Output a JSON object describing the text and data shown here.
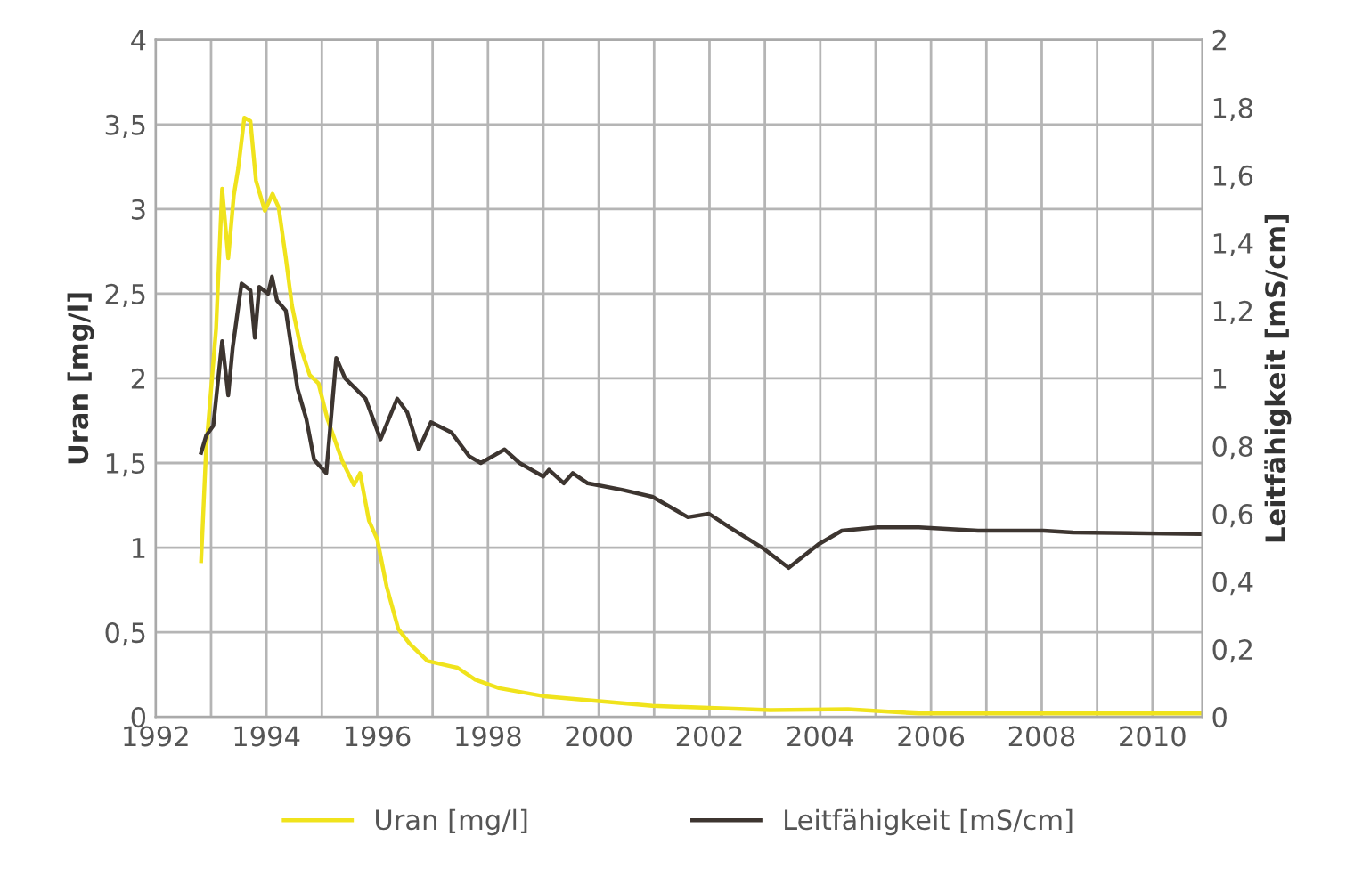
{
  "chart_data": {
    "type": "line",
    "ylabel": "Uran [mg/l]",
    "y2label": "Leitfähigkeit [mS/cm]",
    "xlim": [
      1992,
      2010.9
    ],
    "xticks": [
      1992,
      {
        "value": 1993,
        "label": null
      },
      1994,
      {
        "value": 1995,
        "label": null
      },
      1996,
      {
        "value": 1997,
        "label": null
      },
      1998,
      {
        "value": 1999,
        "label": null
      },
      2000,
      {
        "value": 2001,
        "label": null
      },
      2002,
      {
        "value": 2003,
        "label": null
      },
      2004,
      {
        "value": 2005,
        "label": null
      },
      2006,
      {
        "value": 2007,
        "label": null
      },
      2008,
      {
        "value": 2009,
        "label": null
      },
      2010
    ],
    "ylim": [
      0,
      4
    ],
    "yticks": [
      0,
      {
        "value": 0.5,
        "label": "0,5"
      },
      1,
      {
        "value": 1.5,
        "label": "1,5"
      },
      2,
      {
        "value": 2.5,
        "label": "2,5"
      },
      3,
      {
        "value": 3.5,
        "label": "3,5"
      },
      4
    ],
    "y2lim": [
      0,
      2
    ],
    "y2ticks": [
      0,
      {
        "value": 0.2,
        "label": "0,2"
      },
      {
        "value": 0.4,
        "label": "0,4"
      },
      {
        "value": 0.6,
        "label": "0,6"
      },
      {
        "value": 0.8,
        "label": "0,8"
      },
      1,
      {
        "value": 1.2,
        "label": "1,2"
      },
      {
        "value": 1.4,
        "label": "1,4"
      },
      {
        "value": 1.6,
        "label": "1,6"
      },
      {
        "value": 1.8,
        "label": "1,8"
      },
      2
    ],
    "grid": true,
    "legend": "bottom",
    "series": [
      {
        "name": "Uran [mg/l]",
        "color": "#f0e31c",
        "x": [
          1992.82,
          1992.91,
          1993.09,
          1993.2,
          1993.31,
          1993.41,
          1993.49,
          1993.6,
          1993.71,
          1993.81,
          1993.97,
          1994.11,
          1994.22,
          1994.35,
          1994.46,
          1994.62,
          1994.78,
          1994.94,
          1995.1,
          1995.37,
          1995.58,
          1995.69,
          1995.85,
          1996.0,
          1996.17,
          1996.38,
          1996.59,
          1996.91,
          1997.45,
          1997.77,
          1998.2,
          1999.05,
          2000.97,
          2003.1,
          2004.5,
          2005.78,
          2010.86
        ],
        "values": [
          0.92,
          1.58,
          2.29,
          3.12,
          2.71,
          3.08,
          3.24,
          3.54,
          3.52,
          3.17,
          2.99,
          3.09,
          3.01,
          2.71,
          2.43,
          2.18,
          2.02,
          1.97,
          1.76,
          1.51,
          1.37,
          1.44,
          1.16,
          1.05,
          0.77,
          0.52,
          0.43,
          0.33,
          0.29,
          0.22,
          0.17,
          0.12,
          0.065,
          0.04,
          0.045,
          0.02,
          0.02
        ]
      },
      {
        "name": "Leitfähigkeit [mS/cm]",
        "color": "#3d3530",
        "axis": "y2",
        "x": [
          1992.82,
          1992.91,
          1993.04,
          1993.2,
          1993.31,
          1993.39,
          1993.49,
          1993.55,
          1993.71,
          1993.79,
          1993.87,
          1994.03,
          1994.1,
          1994.19,
          1994.35,
          1994.56,
          1994.72,
          1994.86,
          1995.08,
          1995.26,
          1995.42,
          1995.79,
          1996.06,
          1996.36,
          1996.54,
          1996.75,
          1996.97,
          1997.34,
          1997.66,
          1997.87,
          1998.3,
          1998.57,
          1999.0,
          1999.1,
          1999.37,
          1999.53,
          1999.8,
          2000.44,
          2000.97,
          2001.61,
          2001.99,
          2002.36,
          2002.95,
          2003.43,
          2003.97,
          2004.39,
          2005.03,
          2005.78,
          2006.85,
          2008.03,
          2008.56,
          2010.86
        ],
        "values": [
          0.78,
          0.83,
          0.86,
          1.11,
          0.95,
          1.09,
          1.21,
          1.28,
          1.26,
          1.12,
          1.27,
          1.25,
          1.3,
          1.23,
          1.2,
          0.97,
          0.88,
          0.76,
          0.72,
          1.06,
          1.0,
          0.94,
          0.82,
          0.94,
          0.9,
          0.79,
          0.87,
          0.84,
          0.77,
          0.75,
          0.79,
          0.75,
          0.71,
          0.73,
          0.69,
          0.72,
          0.69,
          0.67,
          0.65,
          0.59,
          0.6,
          0.56,
          0.5,
          0.44,
          0.51,
          0.55,
          0.56,
          0.56,
          0.55,
          0.55,
          0.545,
          0.54
        ]
      }
    ]
  }
}
